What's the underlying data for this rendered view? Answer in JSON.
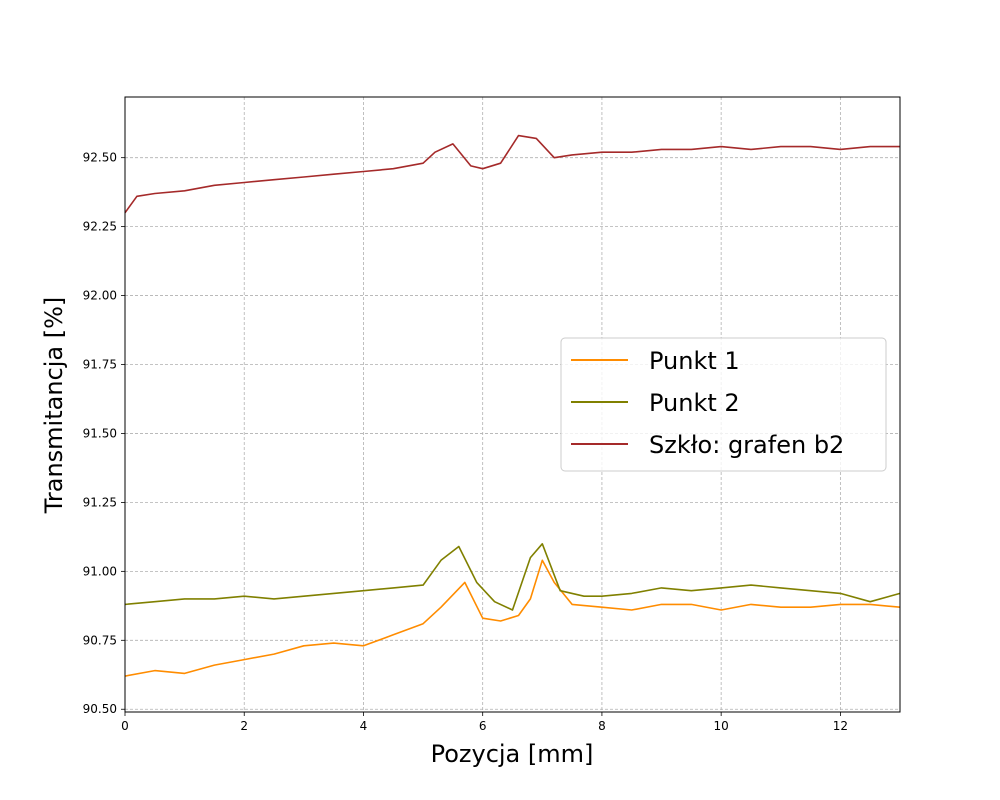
{
  "chart_data": {
    "type": "line",
    "title": "",
    "xlabel": "Pozycja [mm]",
    "ylabel": "Transmitancja [%]",
    "xlim": [
      0,
      13
    ],
    "ylim": [
      90.49,
      92.72
    ],
    "xticks": [
      0,
      2,
      4,
      6,
      8,
      10,
      12
    ],
    "xtick_labels": [
      "0",
      "2",
      "4",
      "6",
      "8",
      "10",
      "12"
    ],
    "yticks": [
      90.5,
      90.75,
      91.0,
      91.25,
      91.5,
      91.75,
      92.0,
      92.25,
      92.5
    ],
    "ytick_labels": [
      "90.50",
      "90.75",
      "91.00",
      "91.25",
      "91.50",
      "91.75",
      "92.00",
      "92.25",
      "92.50"
    ],
    "grid": true,
    "legend_position": "center-right",
    "series": [
      {
        "name": "Punkt 1",
        "color": "#ff8c00",
        "x": [
          0,
          0.5,
          1,
          1.5,
          2,
          2.5,
          3,
          3.5,
          4,
          4.5,
          5,
          5.3,
          5.7,
          6,
          6.3,
          6.6,
          6.8,
          7,
          7.2,
          7.5,
          8,
          8.5,
          9,
          9.5,
          10,
          10.5,
          11,
          11.5,
          12,
          12.5,
          13
        ],
        "y": [
          90.62,
          90.64,
          90.63,
          90.66,
          90.68,
          90.7,
          90.73,
          90.74,
          90.73,
          90.77,
          90.81,
          90.87,
          90.96,
          90.83,
          90.82,
          90.84,
          90.9,
          91.04,
          90.96,
          90.88,
          90.87,
          90.86,
          90.88,
          90.88,
          90.86,
          90.88,
          90.87,
          90.87,
          90.88,
          90.88,
          90.87
        ]
      },
      {
        "name": "Punkt 2",
        "color": "#808000",
        "x": [
          0,
          0.5,
          1,
          1.5,
          2,
          2.5,
          3,
          3.5,
          4,
          4.5,
          5,
          5.3,
          5.6,
          5.9,
          6.2,
          6.5,
          6.8,
          7.0,
          7.3,
          7.7,
          8,
          8.5,
          9,
          9.5,
          10,
          10.5,
          11,
          11.5,
          12,
          12.5,
          13
        ],
        "y": [
          90.88,
          90.89,
          90.9,
          90.9,
          90.91,
          90.9,
          90.91,
          90.92,
          90.93,
          90.94,
          90.95,
          91.04,
          91.09,
          90.96,
          90.89,
          90.86,
          91.05,
          91.1,
          90.93,
          90.91,
          90.91,
          90.92,
          90.94,
          90.93,
          90.94,
          90.95,
          90.94,
          90.93,
          90.92,
          90.89,
          90.92
        ]
      },
      {
        "name": "Szkło: grafen b2",
        "color": "#a52a2a",
        "x": [
          0,
          0.2,
          0.5,
          1,
          1.5,
          2,
          2.5,
          3,
          3.5,
          4,
          4.5,
          5,
          5.2,
          5.5,
          5.8,
          6,
          6.3,
          6.6,
          6.9,
          7.2,
          7.5,
          8,
          8.5,
          9,
          9.5,
          10,
          10.5,
          11,
          11.5,
          12,
          12.5,
          13
        ],
        "y": [
          92.3,
          92.36,
          92.37,
          92.38,
          92.4,
          92.41,
          92.42,
          92.43,
          92.44,
          92.45,
          92.46,
          92.48,
          92.52,
          92.55,
          92.47,
          92.46,
          92.48,
          92.58,
          92.57,
          92.5,
          92.51,
          92.52,
          92.52,
          92.53,
          92.53,
          92.54,
          92.53,
          92.54,
          92.54,
          92.53,
          92.54,
          92.54
        ]
      }
    ]
  }
}
